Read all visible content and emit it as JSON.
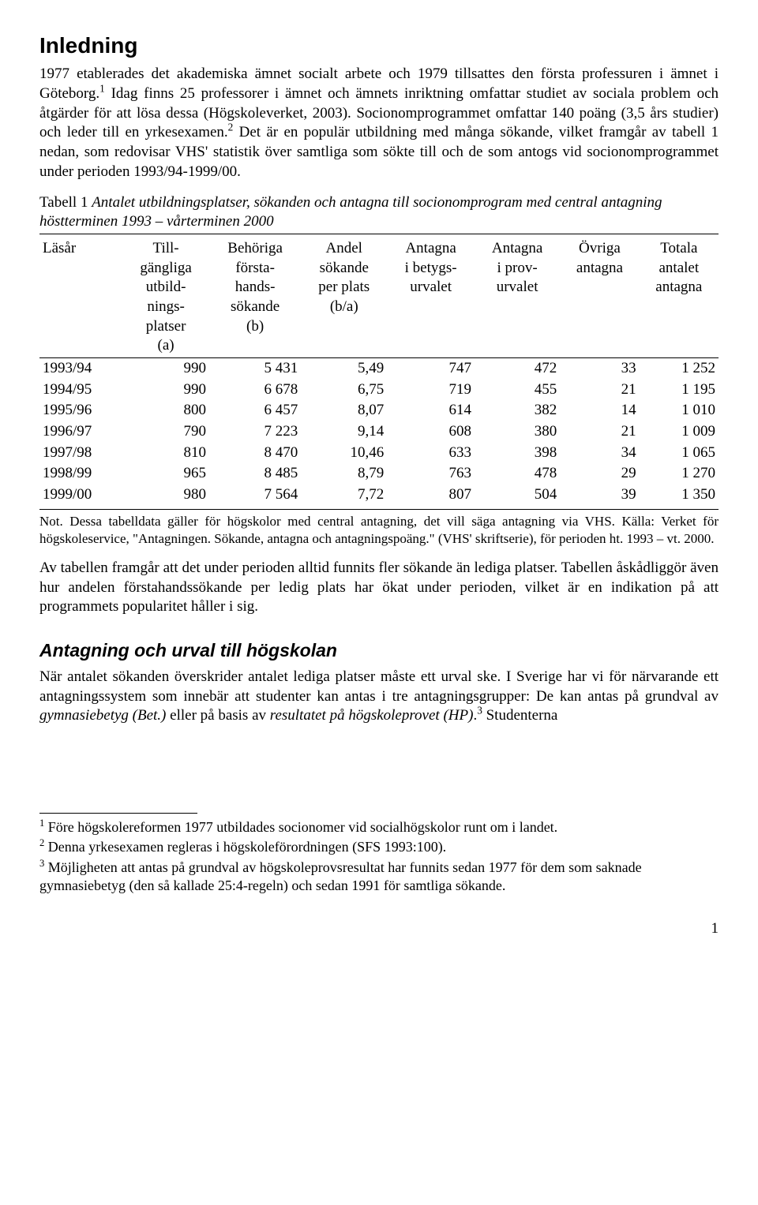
{
  "heading": "Inledning",
  "para1": {
    "s1": "1977 etablerades det akademiska ämnet socialt arbete och 1979 tillsattes den första professuren i ämnet i Göteborg.",
    "sup1": "1",
    "s2": " Idag finns 25 professorer i ämnet och ämnets inriktning omfattar studiet av sociala problem och åtgärder för att lösa dessa (Högskoleverket, 2003). Socionomprogrammet omfattar 140 poäng (3,5 års studier) och leder till en yrkesexamen.",
    "sup2": "2",
    "s3": " Det är en populär utbildning med många sökande, vilket framgår av tabell 1 nedan, som redovisar VHS' statistik över samtliga som sökte till och de som antogs vid socionomprogrammet under perioden 1993/94-1999/00."
  },
  "tableCaption": "Tabell 1 Antalet utbildningsplatser, sökanden och antagna till socionomprogram med central antagning höstterminen 1993 – vårterminen 2000",
  "table": {
    "columns": [
      "Läsår",
      "Till-\ngängliga\nutbild-\nnings-\nplatser\n(a)",
      "Behöriga\nförsta-\nhands-\nsökande\n(b)",
      "Andel\nsökande\nper plats\n(b/a)",
      "Antagna\ni betygs-\nurvalet",
      "Antagna\ni prov-\nurvalet",
      "Övriga\nantagna",
      "Totala\nantalet\nantagna"
    ],
    "rows": [
      [
        "1993/94",
        "990",
        "5 431",
        "5,49",
        "747",
        "472",
        "33",
        "1 252"
      ],
      [
        "1994/95",
        "990",
        "6 678",
        "6,75",
        "719",
        "455",
        "21",
        "1 195"
      ],
      [
        "1995/96",
        "800",
        "6 457",
        "8,07",
        "614",
        "382",
        "14",
        "1 010"
      ],
      [
        "1996/97",
        "790",
        "7 223",
        "9,14",
        "608",
        "380",
        "21",
        "1 009"
      ],
      [
        "1997/98",
        "810",
        "8 470",
        "10,46",
        "633",
        "398",
        "34",
        "1 065"
      ],
      [
        "1998/99",
        "965",
        "8 485",
        "8,79",
        "763",
        "478",
        "29",
        "1 270"
      ],
      [
        "1999/00",
        "980",
        "7 564",
        "7,72",
        "807",
        "504",
        "39",
        "1 350"
      ]
    ],
    "colAlign": [
      "left",
      "right",
      "right",
      "right",
      "right",
      "right",
      "right",
      "right"
    ]
  },
  "tableNote": "Not. Dessa tabelldata gäller för högskolor med central antagning, det vill säga antagning via VHS. Källa: Verket för högskoleservice, \"Antagningen. Sökande, antagna och antagningspoäng.\" (VHS' skriftserie), för perioden ht. 1993 – vt. 2000.",
  "para2": "Av tabellen framgår att det under perioden alltid funnits fler sökande än lediga platser. Tabellen åskådliggör även hur andelen förstahandssökande per ledig plats har ökat under perioden, vilket är en indikation på att programmets popularitet håller i sig.",
  "heading2": "Antagning och urval till högskolan",
  "para3": {
    "s1": "När antalet sökanden överskrider antalet lediga platser måste ett urval ske. I Sverige har vi för närvarande ett antagningssystem som innebär att studenter kan antas i tre antagningsgrupper: De kan antas på grundval av ",
    "em1": "gymnasiebetyg (Bet.)",
    "s2": " eller på basis av ",
    "em2": "resultatet på högskoleprovet (HP)",
    "s3": ".",
    "sup3": "3",
    "s4": " Studenterna"
  },
  "footnotes": [
    {
      "num": "1",
      "text": " Före högskolereformen 1977 utbildades socionomer vid socialhögskolor runt om i landet."
    },
    {
      "num": "2",
      "text": " Denna yrkesexamen regleras i högskoleförordningen (SFS 1993:100)."
    },
    {
      "num": "3",
      "text": " Möjligheten att antas på grundval av högskoleprovsresultat har funnits sedan 1977 för dem som saknade gymnasiebetyg (den så kallade 25:4-regeln) och sedan 1991 för samtliga sökande."
    }
  ],
  "pageNumber": "1",
  "colors": {
    "text": "#000000",
    "background": "#ffffff",
    "rule": "#000000"
  }
}
